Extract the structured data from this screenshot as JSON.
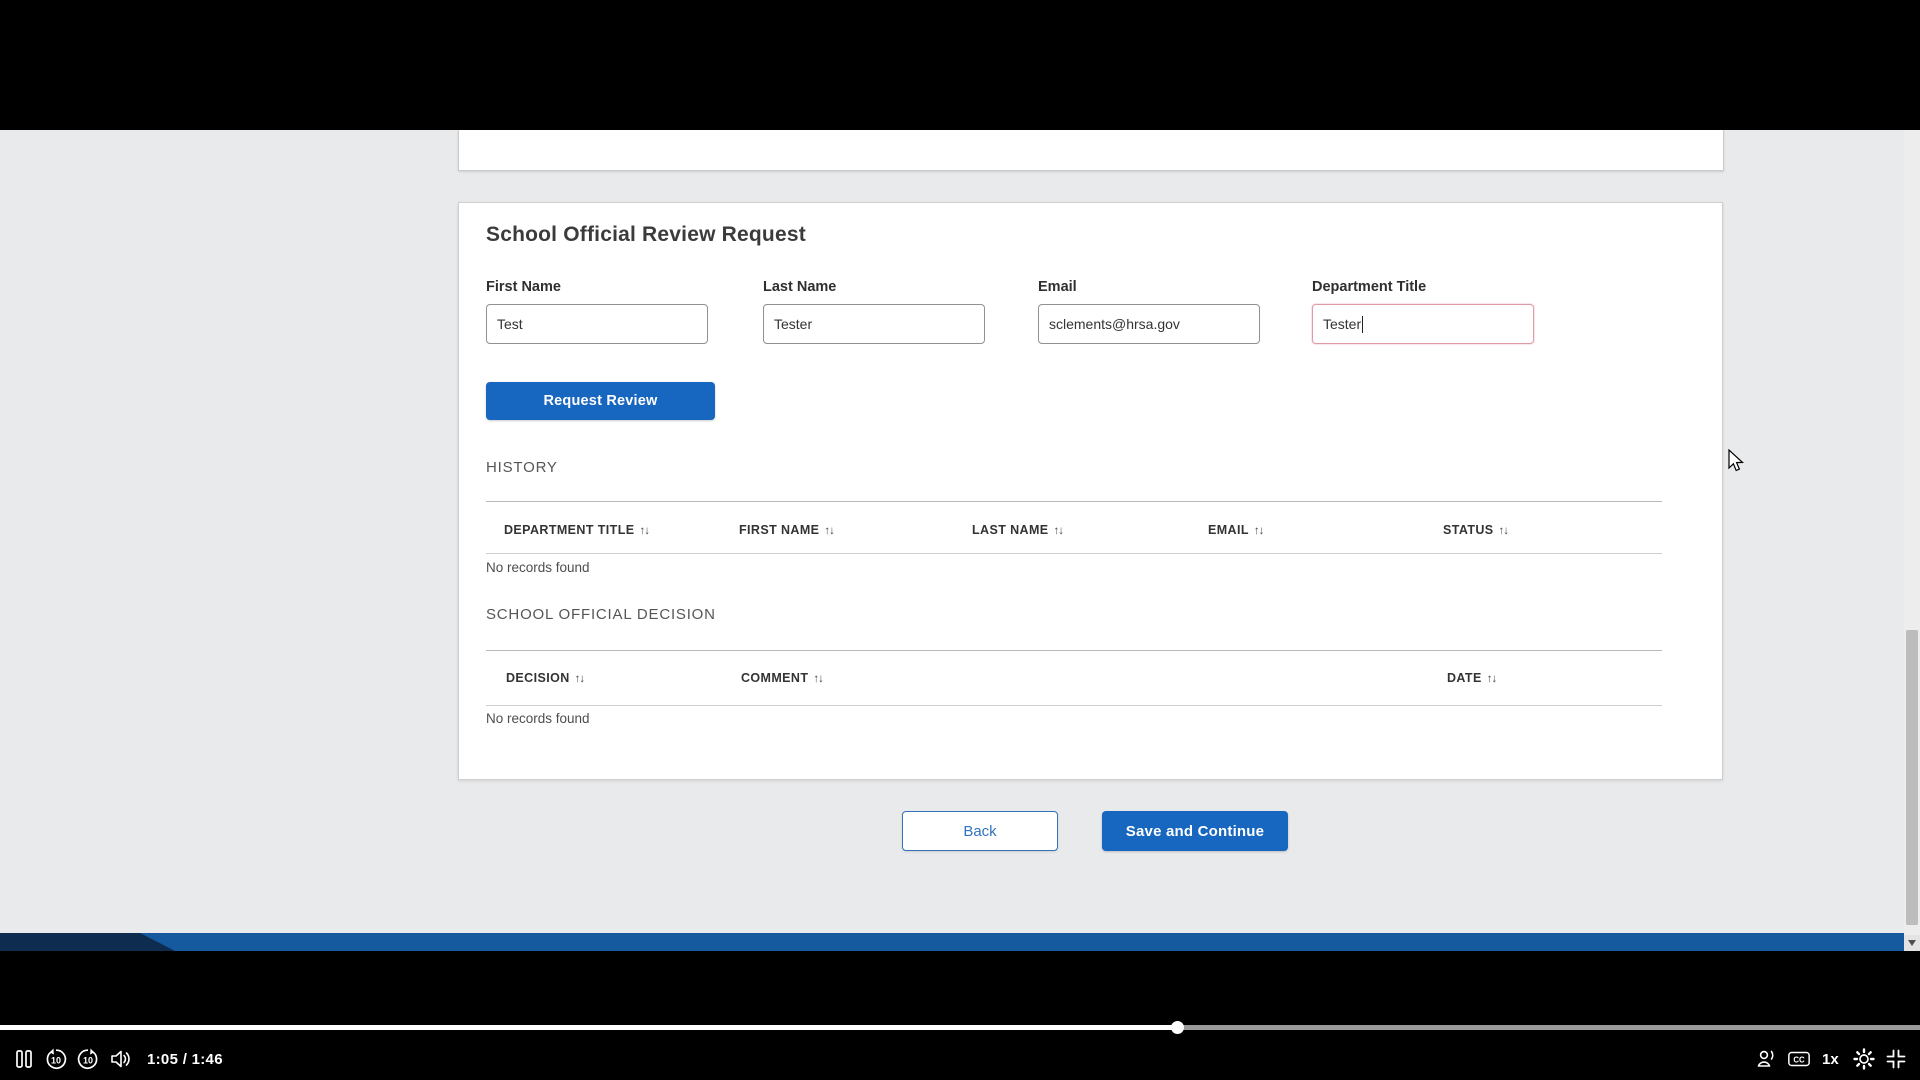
{
  "form": {
    "heading": "School Official Review Request",
    "fields": [
      {
        "label": "First Name",
        "value": "Test"
      },
      {
        "label": "Last Name",
        "value": "Tester"
      },
      {
        "label": "Email",
        "value": "sclements@hrsa.gov"
      },
      {
        "label": "Department Title",
        "value": "Tester"
      }
    ],
    "request_review": "Request Review",
    "history_title": "HISTORY",
    "history_columns": [
      "DEPARTMENT TITLE",
      "FIRST NAME",
      "LAST NAME",
      "EMAIL",
      "STATUS"
    ],
    "history_empty": "No records found",
    "decision_title": "SCHOOL OFFICIAL DECISION",
    "decision_columns": [
      "DECISION",
      "COMMENT",
      "DATE"
    ],
    "decision_empty": "No records found",
    "back": "Back",
    "save_continue": "Save and Continue",
    "sort_icon": "↑↓"
  },
  "player": {
    "time": "1:05 / 1:46",
    "speed": "1x",
    "cc": "CC",
    "rewind_amount": "10",
    "forward_amount": "10",
    "progress_pct": 61.3
  },
  "colors": {
    "accent_blue": "#1766bf",
    "footer_blue": "#15599e",
    "footer_navy": "#0d2c4f",
    "focus_pink": "#e39aa7"
  }
}
